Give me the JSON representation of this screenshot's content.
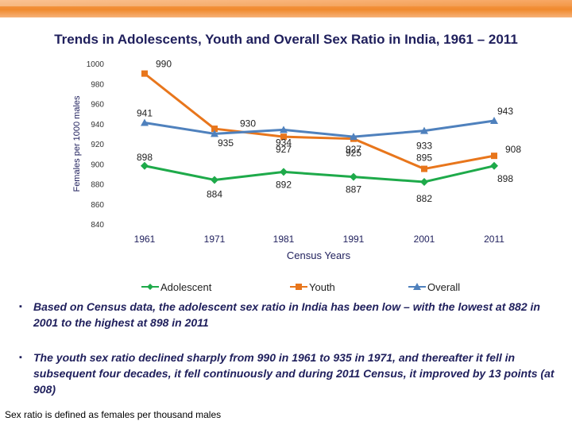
{
  "header": {
    "title": "Trends in Adolescents, Youth and Overall Sex Ratio in India, 1961 – 2011"
  },
  "chart_data": {
    "type": "line",
    "title": "Trends in Adolescents, Youth and Overall Sex Ratio in India, 1961 – 2011",
    "xlabel": "Census Years",
    "ylabel": "Females per 1000 males",
    "categories": [
      "1961",
      "1971",
      "1981",
      "1991",
      "2001",
      "2011"
    ],
    "ylim": [
      840,
      1000
    ],
    "yticks": [
      840,
      860,
      880,
      900,
      920,
      940,
      960,
      980,
      1000
    ],
    "legend_position": "bottom",
    "series": [
      {
        "name": "Adolescent",
        "color": "#1eaa4a",
        "marker": "diamond",
        "values": [
          898,
          884,
          892,
          887,
          882,
          898
        ]
      },
      {
        "name": "Youth",
        "color": "#e8761c",
        "marker": "square",
        "values": [
          990,
          935,
          927,
          925,
          895,
          908
        ]
      },
      {
        "name": "Overall",
        "color": "#4f81bd",
        "marker": "triangle",
        "values": [
          941,
          930,
          934,
          927,
          933,
          943
        ]
      }
    ]
  },
  "notes": {
    "bullet1": "Based on Census data, the adolescent sex ratio in India has been low – with the lowest at 882 in 2001 to the highest at 898 in 2011",
    "bullet2": "The youth sex ratio declined sharply from 990 in 1961 to 935 in 1971, and thereafter it fell in subsequent four decades, it fell continuously and during 2011 Census, it improved by 13 points (at 908)",
    "bullet_marker": "▪",
    "footnote": "Sex ratio is defined as females per thousand males"
  }
}
